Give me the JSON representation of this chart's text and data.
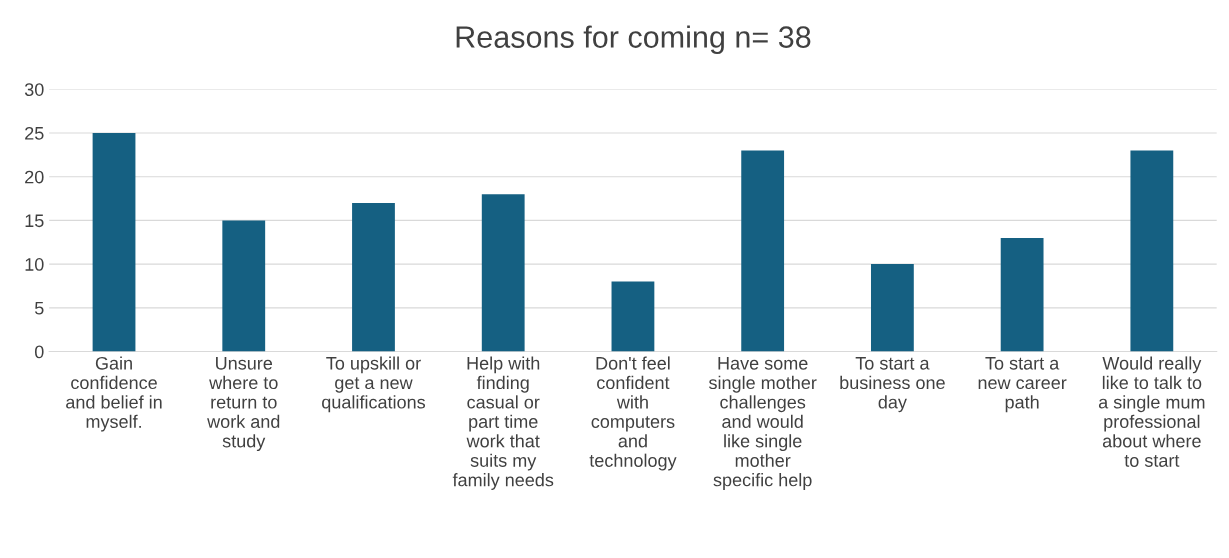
{
  "chart_data": {
    "type": "bar",
    "title": "Reasons for coming n= 38",
    "categories": [
      "Gain\nconfidence\nand belief in\nmyself.",
      "Unsure\nwhere to\nreturn to\nwork and\nstudy",
      "To upskill or\nget a new\nqualifications",
      "Help with\nfinding\ncasual or\npart time\nwork that\nsuits my\nfamily needs",
      "Don't feel\nconfident\nwith\ncomputers\nand\ntechnology",
      "Have some\nsingle mother\nchallenges\nand would\nlike single\nmother\nspecific help",
      "To start a\nbusiness one\nday",
      "To start a\nnew career\npath",
      "Would really\nlike to talk to\na single mum\nprofessional\nabout where\nto start"
    ],
    "values": [
      25,
      15,
      17,
      18,
      8,
      23,
      10,
      13,
      23
    ],
    "color": "#156082",
    "ylim": [
      0,
      30
    ],
    "yticks": [
      0,
      5,
      10,
      15,
      20,
      25,
      30
    ],
    "grid": "y",
    "legend": false
  }
}
